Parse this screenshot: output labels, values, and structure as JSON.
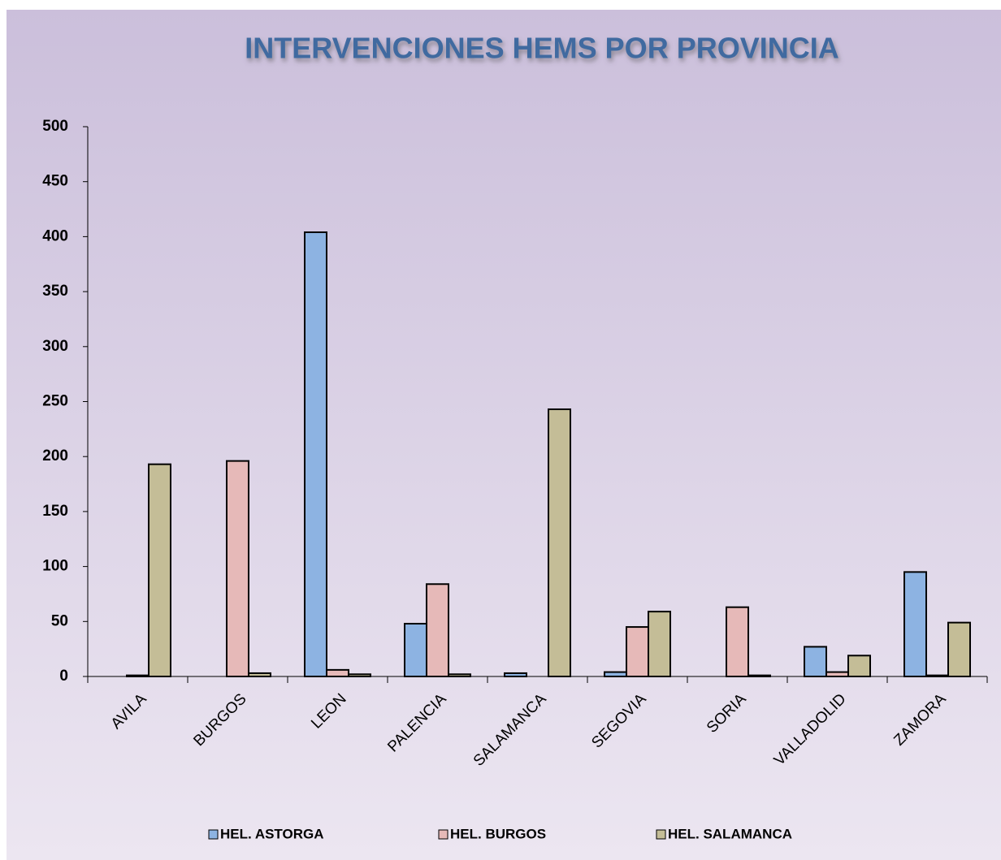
{
  "chart_data": {
    "type": "bar",
    "title": "INTERVENCIONES HEMS POR PROVINCIA",
    "categories": [
      "AVILA",
      "BURGOS",
      "LEON",
      "PALENCIA",
      "SALAMANCA",
      "SEGOVIA",
      "SORIA",
      "VALLADOLID",
      "ZAMORA"
    ],
    "series": [
      {
        "name": "HEL. ASTORGA",
        "color": "#8db3e2",
        "values": [
          0,
          0,
          404,
          48,
          3,
          4,
          0,
          27,
          95
        ]
      },
      {
        "name": "HEL. BURGOS",
        "color": "#e6b9b8",
        "values": [
          1,
          196,
          6,
          84,
          0,
          45,
          63,
          4,
          1
        ]
      },
      {
        "name": "HEL. SALAMANCA",
        "color": "#c4bd97",
        "values": [
          193,
          3,
          2,
          2,
          243,
          59,
          1,
          19,
          49
        ]
      }
    ],
    "ylim": [
      0,
      500
    ],
    "yticks": [
      0,
      50,
      100,
      150,
      200,
      250,
      300,
      350,
      400,
      450,
      500
    ],
    "legend": "bottom"
  }
}
